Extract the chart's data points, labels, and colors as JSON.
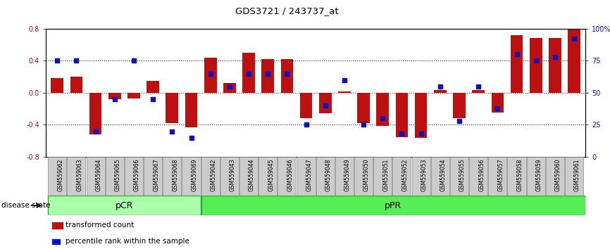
{
  "title": "GDS3721 / 243737_at",
  "samples": [
    "GSM559062",
    "GSM559063",
    "GSM559064",
    "GSM559065",
    "GSM559066",
    "GSM559067",
    "GSM559068",
    "GSM559069",
    "GSM559042",
    "GSM559043",
    "GSM559044",
    "GSM559045",
    "GSM559046",
    "GSM559047",
    "GSM559048",
    "GSM559049",
    "GSM559050",
    "GSM559051",
    "GSM559052",
    "GSM559053",
    "GSM559054",
    "GSM559055",
    "GSM559056",
    "GSM559057",
    "GSM559058",
    "GSM559059",
    "GSM559060",
    "GSM559061"
  ],
  "bar_values": [
    0.18,
    0.2,
    -0.52,
    -0.08,
    -0.07,
    0.15,
    -0.38,
    -0.43,
    0.44,
    0.12,
    0.5,
    0.42,
    0.42,
    -0.32,
    -0.26,
    0.02,
    -0.38,
    -0.41,
    -0.55,
    -0.56,
    0.03,
    -0.32,
    0.03,
    -0.25,
    0.72,
    0.68,
    0.68,
    0.8
  ],
  "percentile_values": [
    75,
    75,
    20,
    45,
    75,
    45,
    20,
    15,
    65,
    55,
    65,
    65,
    65,
    25,
    40,
    60,
    25,
    30,
    18,
    18,
    55,
    28,
    55,
    38,
    80,
    75,
    78,
    92
  ],
  "pCR_count": 8,
  "ylim": [
    -0.8,
    0.8
  ],
  "yticks_left": [
    -0.8,
    -0.4,
    0.0,
    0.4,
    0.8
  ],
  "yticks_right": [
    0,
    25,
    50,
    75,
    100
  ],
  "bar_color": "#BB1111",
  "dot_color": "#1111BB",
  "pCR_color": "#AAFFAA",
  "pPR_color": "#55EE55",
  "label_bg_color": "#CCCCCC",
  "legend_bar_label": "transformed count",
  "legend_dot_label": "percentile rank within the sample",
  "disease_state_label": "disease state",
  "pCR_label": "pCR",
  "pPR_label": "pPR"
}
